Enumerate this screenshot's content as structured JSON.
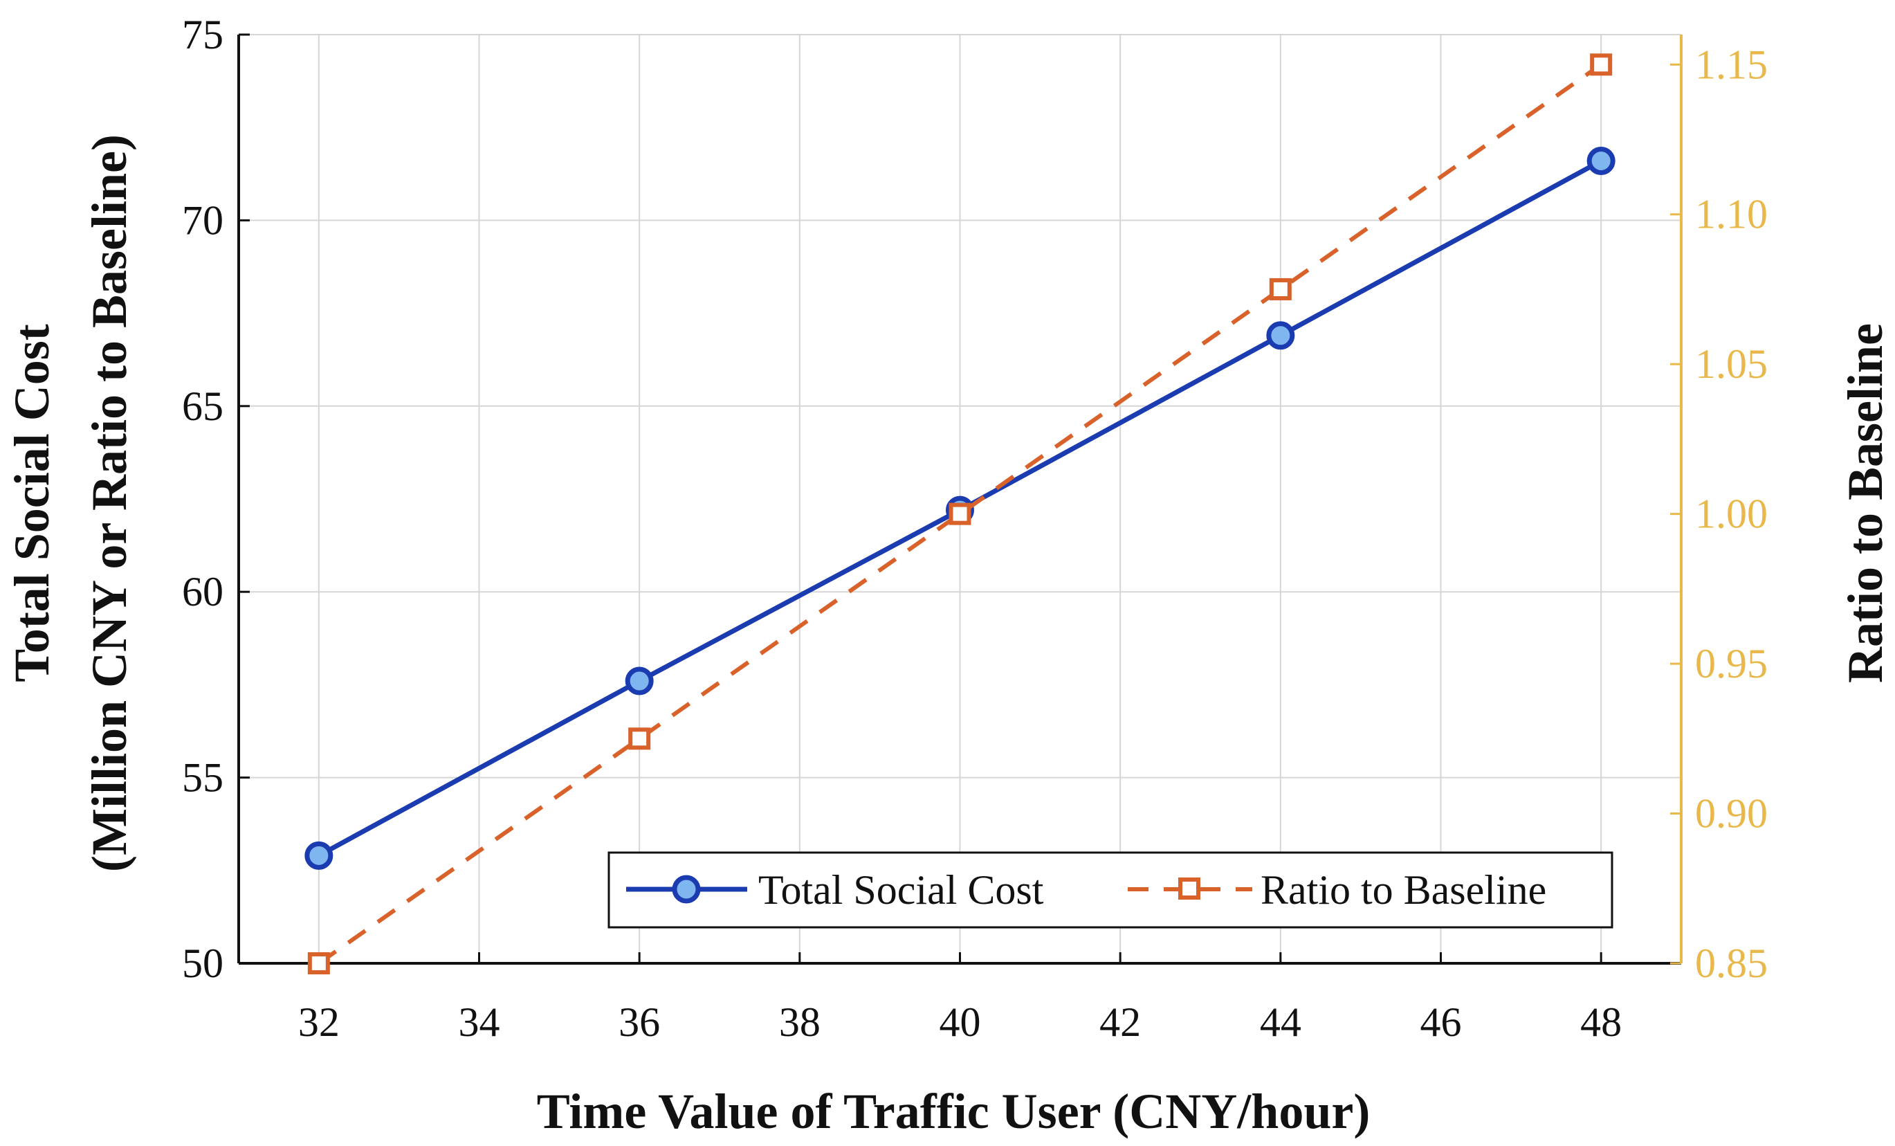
{
  "chart_data": {
    "type": "line",
    "x": [
      32,
      36,
      40,
      44,
      48
    ],
    "xlabel": "Time Value of Traffic User (CNY/hour)",
    "ylabel_line1": "Total Social Cost",
    "ylabel_line2": "(Million CNY or Ratio to Baseline)",
    "ylabel_right": "Ratio to Baseline",
    "xlim": [
      31,
      49
    ],
    "ylim": [
      50,
      75
    ],
    "ylim_right": [
      0.85,
      1.16
    ],
    "xticks": [
      32,
      34,
      36,
      38,
      40,
      42,
      44,
      46,
      48
    ],
    "yticks": [
      50,
      55,
      60,
      65,
      70,
      75
    ],
    "yticks_right": [
      "0.85",
      "0.90",
      "0.95",
      "1.00",
      "1.05",
      "1.10",
      "1.15"
    ],
    "grid": true,
    "legend_position": "bottom-right",
    "series": [
      {
        "name": "Total Social Cost",
        "axis": "left",
        "values": [
          52.9,
          57.6,
          62.2,
          66.9,
          71.6
        ],
        "color": "#1a3cb0",
        "marker_fill": "#7fb6f0",
        "line_style": "solid",
        "marker": "circle"
      },
      {
        "name": "Ratio to Baseline",
        "axis": "right",
        "values": [
          0.85,
          0.925,
          1.0,
          1.075,
          1.15
        ],
        "color": "#d9622b",
        "marker_fill": "#ffffff",
        "line_style": "dashed",
        "marker": "square"
      }
    ],
    "colors": {
      "right_axis": "#e8b84a",
      "axis": "#111111",
      "grid": "#d6d6d6"
    }
  }
}
